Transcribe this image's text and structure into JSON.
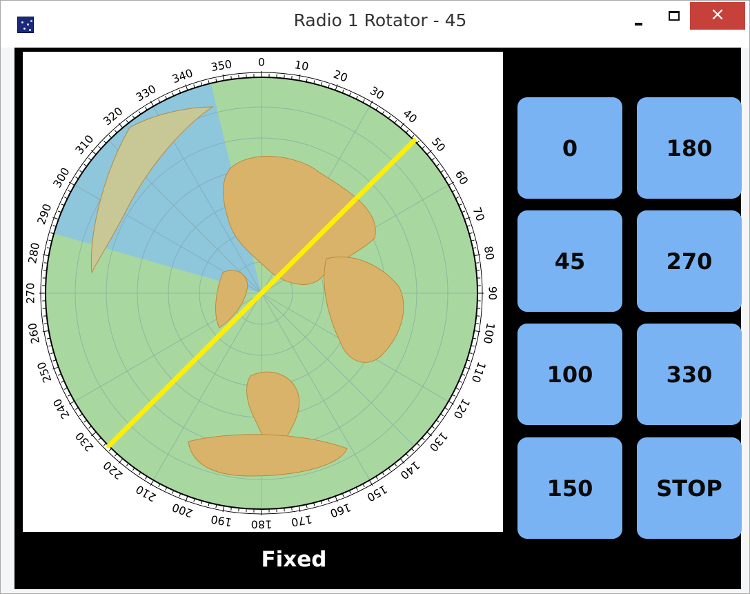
{
  "window": {
    "title": "Radio 1 Rotator - 45",
    "icon": "starfield-app-icon",
    "controls": {
      "minimize": "minimize-icon",
      "maximize": "maximize-icon",
      "close": "×"
    }
  },
  "rotator": {
    "heading_deg": 45,
    "beam_color": "#ffee00",
    "dial_labels": [
      "0",
      "10",
      "20",
      "30",
      "40",
      "50",
      "60",
      "70",
      "80",
      "90",
      "100",
      "110",
      "120",
      "130",
      "140",
      "150",
      "160",
      "170",
      "180",
      "190",
      "200",
      "210",
      "220",
      "230",
      "240",
      "250",
      "260",
      "270",
      "280",
      "290",
      "300",
      "310",
      "320",
      "330",
      "340",
      "350"
    ],
    "map_colors": {
      "day": "#a8d8a0",
      "night": "#8ec6dc",
      "land": "#d9b36a"
    }
  },
  "buttons": [
    {
      "label": "0"
    },
    {
      "label": "180"
    },
    {
      "label": "45"
    },
    {
      "label": "270"
    },
    {
      "label": "100"
    },
    {
      "label": "330"
    },
    {
      "label": "150"
    },
    {
      "label": "STOP"
    }
  ],
  "status": {
    "mode": "Fixed"
  },
  "colors": {
    "button": "#79b3f4",
    "background": "#000000",
    "close_button": "#c7413b"
  }
}
